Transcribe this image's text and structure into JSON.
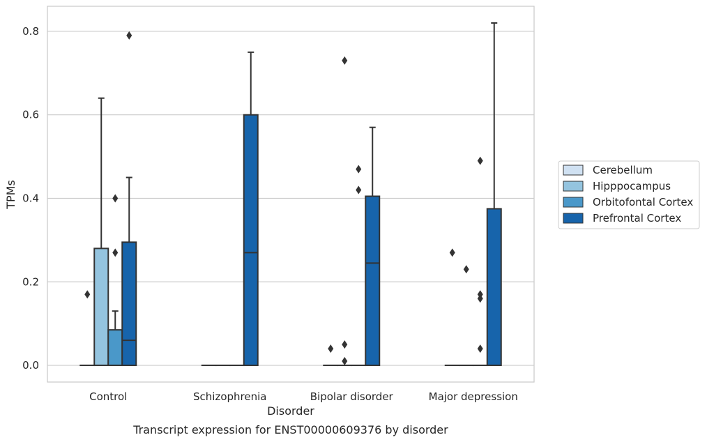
{
  "chart_data": {
    "type": "box",
    "title": "",
    "caption": "Transcript expression for ENST00000609376 by disorder",
    "xlabel": "Disorder",
    "ylabel": "TPMs",
    "ylim": [
      -0.04,
      0.86
    ],
    "yticks": [
      0.0,
      0.2,
      0.4,
      0.6,
      0.8
    ],
    "ytick_labels": [
      "0.0",
      "0.2",
      "0.4",
      "0.6",
      "0.8"
    ],
    "grid": "horizontal",
    "legend_position": "right",
    "categories": [
      "Control",
      "Schizophrenia",
      "Bipolar disorder",
      "Major depression"
    ],
    "series": [
      {
        "name": "Cerebellum",
        "color": "#d0e1f2",
        "boxes": [
          {
            "q1": 0,
            "median": 0,
            "q3": 0,
            "whisker_low": 0,
            "whisker_high": 0,
            "outliers": [
              0.17
            ]
          },
          {
            "q1": 0,
            "median": 0,
            "q3": 0,
            "whisker_low": 0,
            "whisker_high": 0,
            "outliers": []
          },
          {
            "q1": 0,
            "median": 0,
            "q3": 0,
            "whisker_low": 0,
            "whisker_high": 0,
            "outliers": [
              0.04
            ]
          },
          {
            "q1": 0,
            "median": 0,
            "q3": 0,
            "whisker_low": 0,
            "whisker_high": 0,
            "outliers": [
              0.27
            ]
          }
        ]
      },
      {
        "name": "Hipppocampus",
        "color": "#94c4df",
        "boxes": [
          {
            "q1": 0,
            "median": 0,
            "q3": 0.28,
            "whisker_low": 0,
            "whisker_high": 0.64,
            "outliers": []
          },
          {
            "q1": 0,
            "median": 0,
            "q3": 0,
            "whisker_low": 0,
            "whisker_high": 0,
            "outliers": []
          },
          {
            "q1": 0,
            "median": 0,
            "q3": 0,
            "whisker_low": 0,
            "whisker_high": 0,
            "outliers": [
              0.73,
              0.05,
              0.01
            ]
          },
          {
            "q1": 0,
            "median": 0,
            "q3": 0,
            "whisker_low": 0,
            "whisker_high": 0,
            "outliers": [
              0.23
            ]
          }
        ]
      },
      {
        "name": "Orbitofontal Cortex",
        "color": "#4a98c9",
        "boxes": [
          {
            "q1": 0,
            "median": 0,
            "q3": 0.085,
            "whisker_low": 0,
            "whisker_high": 0.13,
            "outliers": [
              0.4,
              0.27
            ]
          },
          {
            "q1": 0,
            "median": 0,
            "q3": 0,
            "whisker_low": 0,
            "whisker_high": 0,
            "outliers": []
          },
          {
            "q1": 0,
            "median": 0,
            "q3": 0,
            "whisker_low": 0,
            "whisker_high": 0,
            "outliers": [
              0.47,
              0.42
            ]
          },
          {
            "q1": 0,
            "median": 0,
            "q3": 0,
            "whisker_low": 0,
            "whisker_high": 0,
            "outliers": [
              0.49,
              0.17,
              0.16,
              0.04
            ]
          }
        ]
      },
      {
        "name": "Prefrontal Cortex",
        "color": "#1764ab",
        "boxes": [
          {
            "q1": 0,
            "median": 0.06,
            "q3": 0.295,
            "whisker_low": 0,
            "whisker_high": 0.45,
            "outliers": [
              0.79
            ]
          },
          {
            "q1": 0,
            "median": 0.27,
            "q3": 0.6,
            "whisker_low": 0,
            "whisker_high": 0.75,
            "outliers": []
          },
          {
            "q1": 0,
            "median": 0.245,
            "q3": 0.405,
            "whisker_low": 0,
            "whisker_high": 0.57,
            "outliers": []
          },
          {
            "q1": 0,
            "median": 0,
            "q3": 0.375,
            "whisker_low": 0,
            "whisker_high": 0.82,
            "outliers": []
          }
        ]
      }
    ]
  }
}
